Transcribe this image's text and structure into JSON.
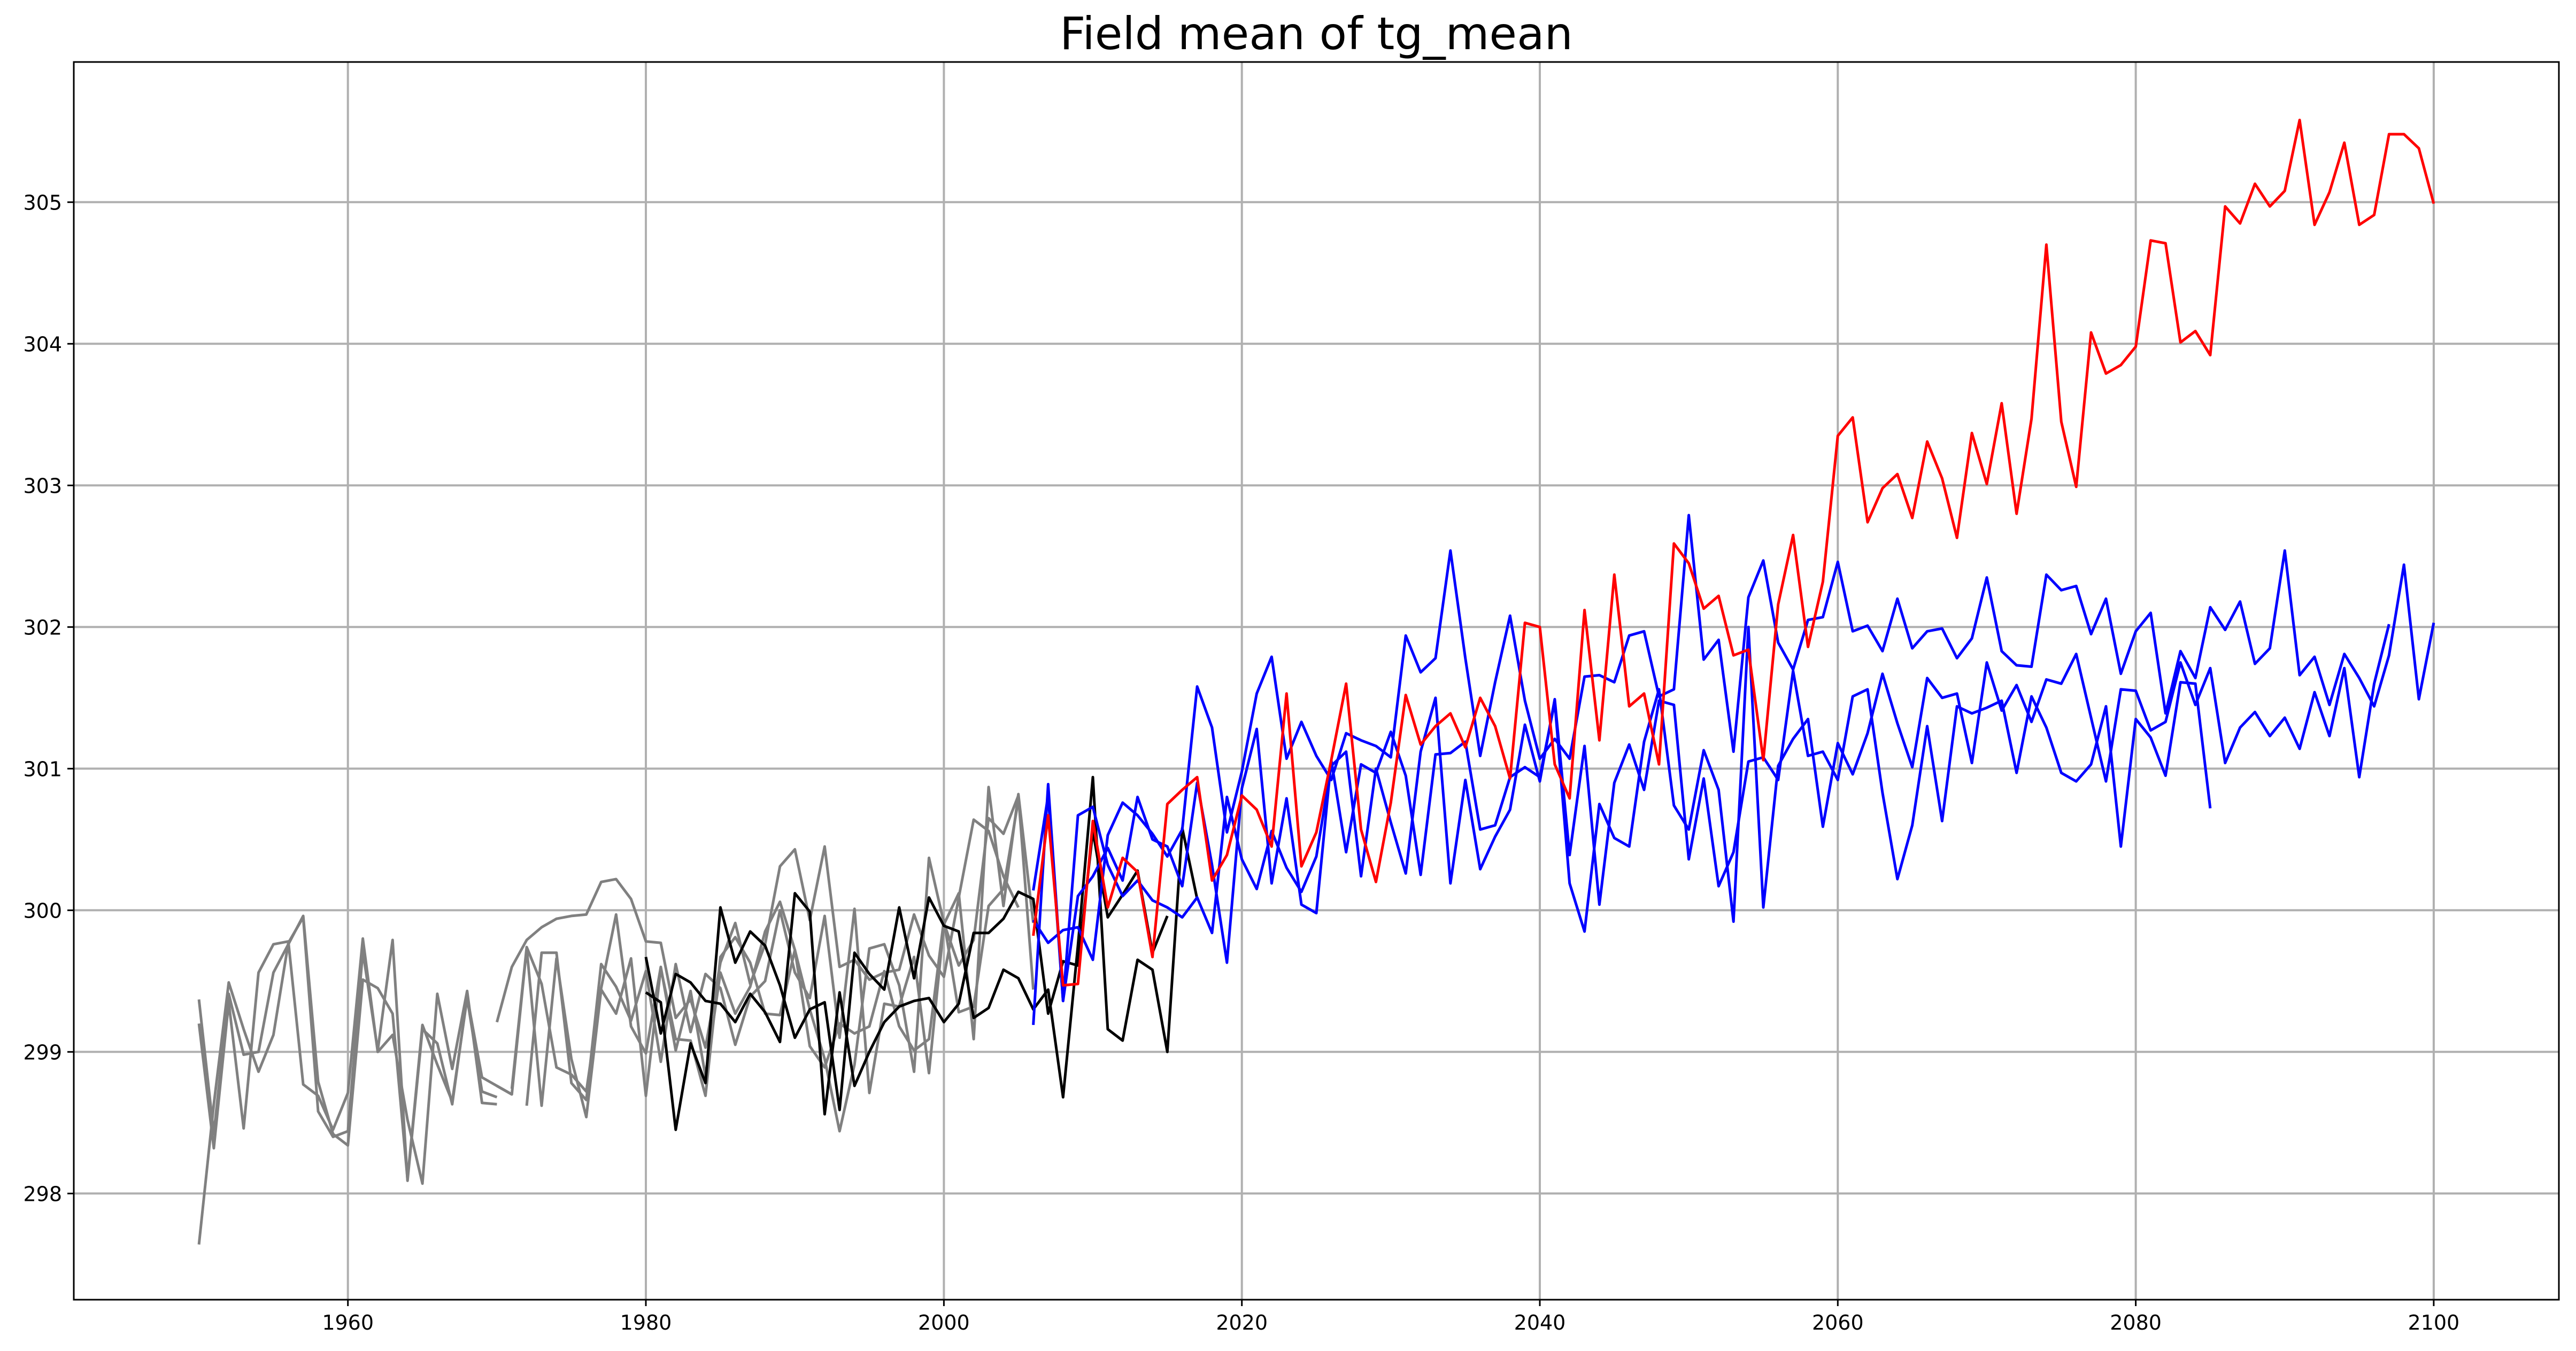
{
  "chart_data": {
    "type": "line",
    "title": "Field mean of tg_mean",
    "xlabel": "",
    "ylabel": "",
    "xlim": [
      1941.6,
      2108.4
    ],
    "ylim": [
      297.25,
      305.99
    ],
    "grid": true,
    "xticks": [
      1960,
      1980,
      2000,
      2020,
      2040,
      2060,
      2080,
      2100
    ],
    "yticks": [
      298,
      299,
      300,
      301,
      302,
      303,
      304,
      305
    ],
    "series": [
      {
        "color": "#808080",
        "x_start": 1950,
        "values": [
          299.37,
          298.42,
          299.41,
          298.98,
          299.0,
          299.56,
          299.76,
          299.96,
          298.79,
          298.42,
          298.34,
          299.51,
          299.45,
          299.27,
          298.1,
          299.19,
          298.91,
          298.65,
          299.38,
          298.72,
          298.68
        ]
      },
      {
        "color": "#808080",
        "x_start": 1950,
        "values": [
          297.64,
          298.63,
          299.49,
          299.16,
          298.86,
          299.12,
          299.77,
          299.95,
          298.58,
          298.4,
          298.44,
          299.71,
          299.01,
          299.79,
          298.09,
          299.16,
          299.06,
          298.63,
          299.39,
          298.82,
          298.76,
          298.7
        ]
      },
      {
        "color": "#808080",
        "x_start": 1950,
        "values": [
          299.2,
          298.32,
          299.35,
          298.46,
          299.56,
          299.76,
          299.78,
          298.77,
          298.69,
          298.45,
          298.71,
          299.8,
          299.0,
          299.12,
          298.52,
          298.07,
          299.41,
          298.88,
          299.43,
          298.64,
          298.63
        ]
      },
      {
        "color": "#808080",
        "x_start": 1970,
        "values": [
          299.21,
          299.6,
          299.79,
          299.88,
          299.94,
          299.96,
          299.97,
          300.2,
          300.22,
          300.08,
          299.78,
          299.77,
          299.24,
          299.37,
          299.03,
          299.63,
          299.91,
          299.48,
          299.76,
          300.31,
          300.43,
          299.93,
          300.45,
          299.6,
          299.65,
          299.51,
          299.56,
          299.58,
          299.97,
          299.68,
          299.53,
          300.09,
          300.64,
          300.56,
          300.24,
          300.02
        ]
      },
      {
        "color": "#808080",
        "x_start": 1970,
        "values": [
          298.76,
          298.7,
          299.73,
          298.62,
          299.66,
          298.95,
          298.54,
          299.44,
          299.27,
          299.66,
          298.69,
          299.59,
          299.09,
          299.08,
          298.69,
          299.67,
          299.81,
          299.63,
          299.27,
          299.26,
          299.72,
          299.04,
          298.89,
          299.2,
          299.13,
          299.18,
          299.57,
          299.18,
          299.01,
          299.09,
          299.93,
          299.28,
          299.32,
          300.03,
          300.15,
          300.78
        ]
      },
      {
        "color": "#808080",
        "x_start": 1971,
        "values": [
          298.74,
          299.74,
          299.48,
          298.89,
          298.84,
          298.72,
          299.45,
          299.97,
          299.18,
          298.99,
          299.6,
          299.01,
          299.43,
          298.83,
          299.56,
          299.27,
          299.46,
          299.85,
          300.06,
          299.72,
          299.3,
          298.95,
          298.44,
          298.91,
          299.73,
          299.76,
          299.47,
          298.86,
          300.37,
          299.91,
          299.61,
          299.79,
          300.65,
          300.54,
          300.81,
          299.44
        ]
      },
      {
        "color": "#808080",
        "x_start": 1972,
        "values": [
          298.62,
          299.7,
          299.7,
          298.78,
          298.66,
          299.62,
          299.46,
          299.22,
          299.57,
          298.93,
          299.62,
          299.14,
          299.55,
          299.45,
          299.05,
          299.39,
          299.5,
          300.0,
          299.56,
          299.38,
          299.96,
          299.1,
          300.01,
          298.71,
          299.34,
          299.32,
          299.67,
          298.85,
          299.9,
          300.12,
          299.09,
          300.87,
          300.03,
          300.82,
          299.91
        ]
      },
      {
        "color": "#000000",
        "x_start": 1980,
        "values": [
          299.42,
          299.35,
          298.45,
          299.06,
          298.78,
          300.02,
          299.63,
          299.85,
          299.75,
          299.47,
          299.1,
          299.3,
          299.35,
          298.59,
          299.7,
          299.55,
          299.44,
          300.02,
          299.52,
          300.09,
          299.89,
          299.85,
          299.24,
          299.31,
          299.58,
          299.52,
          299.3,
          299.44,
          298.68,
          299.75,
          300.94,
          299.16,
          299.08,
          299.65,
          299.58,
          299.0,
          300.58,
          300.08
        ]
      },
      {
        "color": "#000000",
        "x_start": 1980,
        "values": [
          299.67,
          299.13,
          299.55,
          299.49,
          299.36,
          299.34,
          299.21,
          299.41,
          299.28,
          299.07,
          300.12,
          299.99,
          298.56,
          299.42,
          298.76,
          299.0,
          299.21,
          299.32,
          299.36,
          299.38,
          299.21,
          299.34,
          299.84,
          299.84,
          299.94,
          300.13,
          300.08,
          299.27,
          299.64,
          299.61,
          300.56,
          299.95,
          300.11,
          300.28,
          299.7,
          299.96
        ]
      },
      {
        "color": "#0000ff",
        "x_start": 2006,
        "values": [
          299.19,
          300.89,
          299.36,
          300.67,
          300.73,
          300.32,
          300.1,
          300.21,
          300.07,
          300.02,
          299.95,
          300.09,
          299.84,
          300.8,
          300.36,
          300.15,
          300.56,
          300.3,
          300.13,
          300.38,
          301.02,
          301.12,
          300.24,
          301.0,
          300.62,
          300.26,
          301.12,
          301.5,
          300.19,
          300.92,
          300.29,
          300.52,
          300.71,
          301.31,
          300.91,
          301.49,
          300.39,
          301.16,
          300.04,
          300.9,
          301.17,
          300.85,
          301.48,
          301.45,
          300.36,
          300.93,
          300.17,
          300.41,
          301.05,
          301.08,
          300.92,
          301.69,
          301.09,
          301.12,
          300.92,
          301.51,
          301.56,
          300.83,
          300.22,
          300.6,
          301.3,
          300.63,
          301.44,
          301.39,
          301.43,
          301.48,
          300.97,
          301.51,
          301.29,
          300.97,
          300.91,
          301.03,
          301.44,
          300.45,
          301.35,
          301.22,
          300.95,
          301.61,
          301.6,
          300.72
        ]
      },
      {
        "color": "#0000ff",
        "x_start": 2006,
        "values": [
          300.14,
          300.81,
          299.36,
          300.1,
          300.24,
          300.44,
          300.21,
          300.8,
          300.5,
          300.45,
          300.17,
          300.9,
          300.32,
          299.63,
          300.86,
          301.28,
          300.19,
          300.79,
          300.04,
          299.98,
          301.06,
          300.41,
          301.03,
          300.97,
          301.26,
          300.95,
          300.25,
          301.1,
          301.11,
          301.19,
          300.57,
          300.6,
          300.94,
          301.01,
          300.94,
          301.47,
          300.19,
          299.85,
          300.75,
          300.51,
          300.45,
          301.19,
          301.56,
          300.74,
          300.57,
          301.13,
          300.85,
          299.92,
          302.0,
          300.02,
          301.02,
          301.21,
          301.35,
          300.59,
          301.18,
          300.96,
          301.25,
          301.67,
          301.32,
          301.01,
          301.64,
          301.5,
          301.53,
          301.04,
          301.75,
          301.41,
          301.59,
          301.33,
          301.63,
          301.6,
          301.81,
          301.36,
          300.91,
          301.56,
          301.55,
          301.27,
          301.33,
          301.75,
          301.45,
          301.71,
          301.04,
          301.29,
          301.4,
          301.23,
          301.36,
          301.14,
          301.54,
          301.23,
          301.71,
          300.94,
          301.6,
          302.02
        ]
      },
      {
        "color": "#0000ff",
        "x_start": 2006,
        "values": [
          299.93,
          299.77,
          299.86,
          299.88,
          299.65,
          300.53,
          300.76,
          300.67,
          300.54,
          300.38,
          300.57,
          301.58,
          301.29,
          300.55,
          300.98,
          301.53,
          301.79,
          301.07,
          301.33,
          301.09,
          300.92,
          301.25,
          301.2,
          301.16,
          301.08,
          301.94,
          301.68,
          301.78,
          302.54,
          301.78,
          301.09,
          301.61,
          302.08,
          301.48,
          301.07,
          301.21,
          301.07,
          301.65,
          301.66,
          301.61,
          301.94,
          301.97,
          301.51,
          301.56,
          302.79,
          301.77,
          301.91,
          301.12,
          302.21,
          302.47,
          301.89,
          301.7,
          302.05,
          302.07,
          302.46,
          301.97,
          302.01,
          301.83,
          302.2,
          301.85,
          301.97,
          301.99,
          301.78,
          301.92,
          302.35,
          301.83,
          301.73,
          301.72,
          302.37,
          302.26,
          302.29,
          301.95,
          302.2,
          301.67,
          301.97,
          302.1,
          301.39,
          301.83,
          301.64,
          302.14,
          301.98,
          302.18,
          301.74,
          301.85,
          302.54,
          301.66,
          301.79,
          301.45,
          301.81,
          301.64,
          301.44,
          301.8,
          302.44,
          301.49,
          302.03
        ]
      },
      {
        "color": "#ff0000",
        "x_start": 2006,
        "values": [
          299.82,
          300.67,
          299.47,
          299.48,
          300.63,
          300.02,
          300.37,
          300.27,
          299.67,
          300.75,
          300.85,
          300.94,
          300.21,
          300.39,
          300.81,
          300.71,
          300.45,
          301.53,
          300.31,
          300.55,
          301.06,
          301.6,
          300.57,
          300.2,
          300.76,
          301.52,
          301.17,
          301.3,
          301.39,
          301.15,
          301.5,
          301.3,
          300.93,
          302.03,
          302.0,
          301.03,
          300.79,
          302.12,
          301.2,
          302.37,
          301.44,
          301.53,
          301.03,
          302.59,
          302.45,
          302.13,
          302.22,
          301.8,
          301.84,
          301.06,
          302.16,
          302.65,
          301.86,
          302.32,
          303.35,
          303.48,
          302.74,
          302.98,
          303.08,
          302.77,
          303.31,
          303.05,
          302.63,
          303.37,
          303.01,
          303.58,
          302.8,
          303.47,
          304.7,
          303.45,
          302.99,
          304.08,
          303.79,
          303.85,
          303.98,
          304.73,
          304.71,
          304.01,
          304.09,
          303.92,
          304.97,
          304.85,
          305.13,
          304.97,
          305.08,
          305.58,
          304.84,
          305.07,
          305.42,
          304.84,
          304.91,
          305.48,
          305.48,
          305.38,
          304.99
        ]
      }
    ]
  }
}
